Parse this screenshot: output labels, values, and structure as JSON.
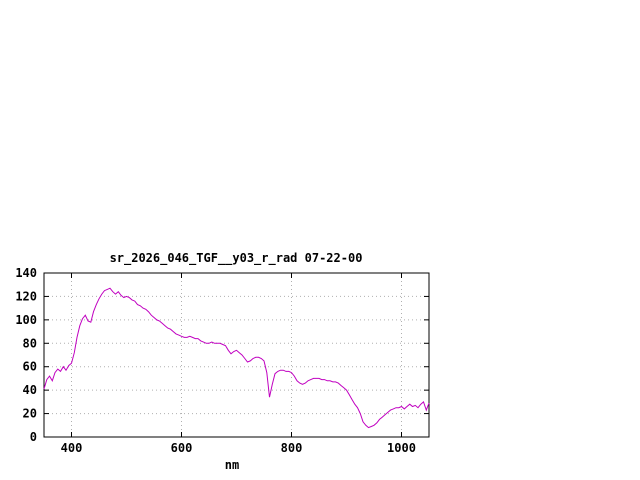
{
  "chart_data": {
    "type": "line",
    "title": "sr_2026_046_TGF__y03_r_rad 07-22-00",
    "xlabel": "nm",
    "ylabel": "",
    "xlim": [
      350,
      1050
    ],
    "ylim": [
      0,
      140
    ],
    "xticks": [
      400,
      600,
      800,
      1000
    ],
    "yticks": [
      0,
      20,
      40,
      60,
      80,
      100,
      120,
      140
    ],
    "grid": true,
    "legend": "none",
    "line_color": "#c000c0",
    "x": [
      350,
      355,
      360,
      365,
      370,
      375,
      380,
      385,
      390,
      395,
      400,
      405,
      410,
      415,
      420,
      425,
      430,
      435,
      440,
      445,
      450,
      455,
      460,
      465,
      470,
      475,
      480,
      485,
      490,
      495,
      500,
      505,
      510,
      515,
      520,
      525,
      530,
      535,
      540,
      545,
      550,
      555,
      560,
      565,
      570,
      575,
      580,
      585,
      590,
      595,
      600,
      605,
      610,
      615,
      620,
      625,
      630,
      635,
      640,
      645,
      650,
      655,
      660,
      665,
      670,
      675,
      680,
      685,
      690,
      695,
      700,
      705,
      710,
      715,
      720,
      725,
      730,
      735,
      740,
      745,
      750,
      755,
      760,
      765,
      770,
      775,
      780,
      785,
      790,
      795,
      800,
      805,
      810,
      815,
      820,
      825,
      830,
      835,
      840,
      845,
      850,
      855,
      860,
      865,
      870,
      875,
      880,
      885,
      890,
      895,
      900,
      905,
      910,
      915,
      920,
      925,
      930,
      935,
      940,
      945,
      950,
      955,
      960,
      965,
      970,
      975,
      980,
      985,
      990,
      995,
      1000,
      1005,
      1010,
      1015,
      1020,
      1025,
      1030,
      1035,
      1040,
      1045,
      1050
    ],
    "y": [
      41,
      49,
      52,
      48,
      55,
      58,
      56,
      60,
      57,
      61,
      63,
      72,
      85,
      95,
      101,
      104,
      99,
      98,
      107,
      113,
      118,
      122,
      125,
      126,
      127,
      124,
      122,
      124,
      121,
      119,
      120,
      119,
      117,
      116,
      113,
      112,
      110,
      109,
      107,
      104,
      102,
      100,
      99,
      97,
      95,
      93,
      92,
      90,
      88,
      87,
      86,
      85,
      85,
      86,
      85,
      84,
      84,
      82,
      81,
      80,
      80,
      81,
      80,
      80,
      80,
      79,
      78,
      74,
      71,
      73,
      74,
      72,
      70,
      67,
      64,
      65,
      67,
      68,
      68,
      67,
      65,
      55,
      34,
      45,
      54,
      56,
      57,
      57,
      56,
      56,
      55,
      52,
      48,
      46,
      45,
      46,
      48,
      49,
      50,
      50,
      50,
      49,
      49,
      48,
      48,
      47,
      47,
      46,
      44,
      42,
      40,
      36,
      32,
      28,
      25,
      20,
      13,
      10,
      8,
      9,
      10,
      12,
      15,
      17,
      19,
      21,
      23,
      24,
      25,
      25,
      26,
      24,
      26,
      28,
      26,
      27,
      25,
      28,
      30,
      23,
      29
    ]
  }
}
